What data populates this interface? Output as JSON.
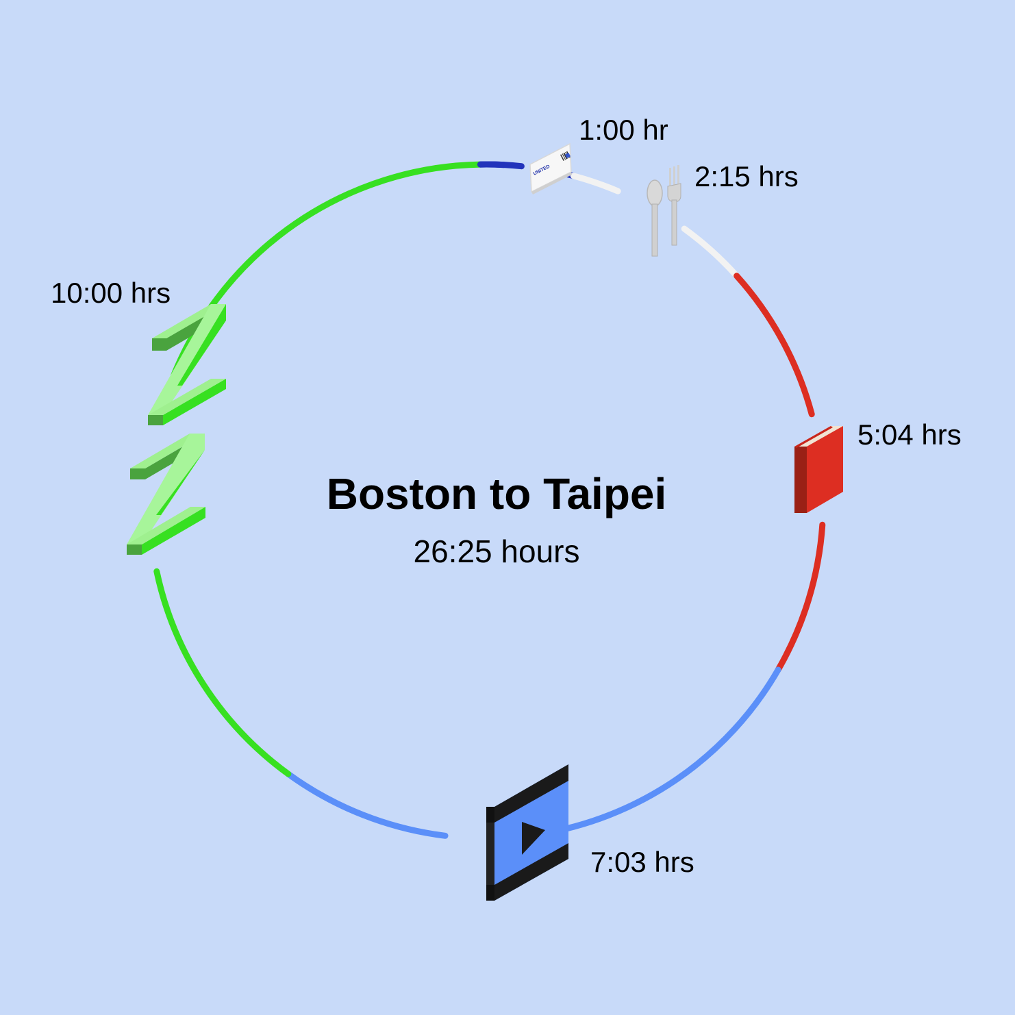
{
  "title": "Boston to Taipei",
  "subtitle": "26:25 hours",
  "ticket_brand": "UNITED",
  "segments": [
    {
      "name": "boarding",
      "label": "1:00 hr",
      "duration_hours": 1.0,
      "color": "#2233bb",
      "icon": "boarding-pass-icon"
    },
    {
      "name": "meal",
      "label": "2:15 hrs",
      "duration_hours": 2.25,
      "color": "#f2f2f2",
      "icon": "utensils-icon"
    },
    {
      "name": "reading",
      "label": "5:04 hrs",
      "duration_hours": 5.07,
      "color": "#dd2e22",
      "icon": "book-icon"
    },
    {
      "name": "movies",
      "label": "7:03 hrs",
      "duration_hours": 7.05,
      "color": "#5b8ff9",
      "icon": "play-video-icon"
    },
    {
      "name": "sleep",
      "label": "10:00 hrs",
      "duration_hours": 10.0,
      "color": "#37e021",
      "icon": "sleep-zz-icon"
    }
  ]
}
